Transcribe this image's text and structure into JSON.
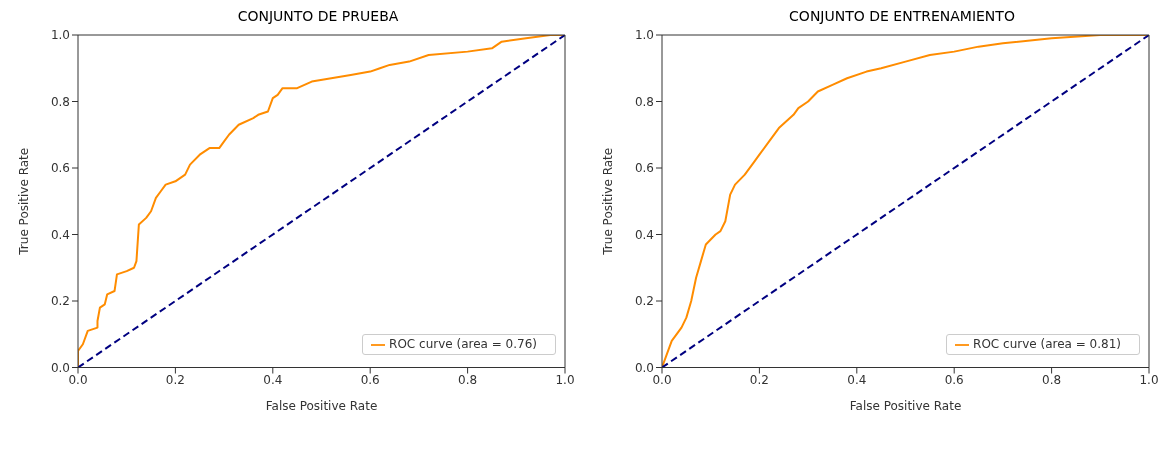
{
  "chart_data": [
    {
      "type": "line",
      "title": "CONJUNTO DE PRUEBA",
      "xlabel": "False Positive Rate",
      "ylabel": "True Positive Rate",
      "xlim": [
        0,
        1
      ],
      "ylim": [
        0,
        1
      ],
      "xticks": [
        {
          "value": 0,
          "label": "0.0"
        },
        {
          "value": 0.2,
          "label": "0.2"
        },
        {
          "value": 0.4,
          "label": "0.4"
        },
        {
          "value": 0.6,
          "label": "0.6"
        },
        {
          "value": 0.8,
          "label": "0.8"
        },
        {
          "value": 1,
          "label": "1.0"
        }
      ],
      "yticks": [
        {
          "value": 0,
          "label": "0.0"
        },
        {
          "value": 0.2,
          "label": "0.2"
        },
        {
          "value": 0.4,
          "label": "0.4"
        },
        {
          "value": 0.6,
          "label": "0.6"
        },
        {
          "value": 0.8,
          "label": "0.8"
        },
        {
          "value": 1,
          "label": "1.0"
        }
      ],
      "grid": false,
      "legend": "bottom right",
      "marker": "none",
      "series": [
        {
          "name": "ROC curve (area = 0.76)",
          "color": "#ff8c00",
          "line_style": "solid",
          "x": [
            0,
            0,
            0.01,
            0.02,
            0.04,
            0.04,
            0.045,
            0.055,
            0.06,
            0.075,
            0.08,
            0.1,
            0.115,
            0.12,
            0.125,
            0.14,
            0.15,
            0.16,
            0.17,
            0.18,
            0.2,
            0.22,
            0.23,
            0.25,
            0.27,
            0.29,
            0.3,
            0.31,
            0.33,
            0.36,
            0.37,
            0.39,
            0.4,
            0.41,
            0.42,
            0.45,
            0.48,
            0.52,
            0.56,
            0.6,
            0.62,
            0.64,
            0.68,
            0.72,
            0.8,
            0.85,
            0.87,
            0.92,
            0.97,
            1
          ],
          "values": [
            0,
            0.05,
            0.07,
            0.11,
            0.12,
            0.14,
            0.18,
            0.19,
            0.22,
            0.23,
            0.28,
            0.29,
            0.3,
            0.32,
            0.43,
            0.45,
            0.47,
            0.51,
            0.53,
            0.55,
            0.56,
            0.58,
            0.61,
            0.64,
            0.66,
            0.66,
            0.68,
            0.7,
            0.73,
            0.75,
            0.76,
            0.77,
            0.81,
            0.82,
            0.84,
            0.84,
            0.86,
            0.87,
            0.88,
            0.89,
            0.9,
            0.91,
            0.92,
            0.94,
            0.95,
            0.96,
            0.98,
            0.99,
            1,
            1
          ]
        },
        {
          "color": "#000080",
          "line_style": "dashed",
          "x": [
            0,
            1
          ],
          "values": [
            0,
            1
          ]
        }
      ]
    },
    {
      "type": "line",
      "title": "CONJUNTO DE ENTRENAMIENTO",
      "xlabel": "False Positive Rate",
      "ylabel": "True Positive Rate",
      "xlim": [
        0,
        1
      ],
      "ylim": [
        0,
        1
      ],
      "xticks": [
        {
          "value": 0,
          "label": "0.0"
        },
        {
          "value": 0.2,
          "label": "0.2"
        },
        {
          "value": 0.4,
          "label": "0.4"
        },
        {
          "value": 0.6,
          "label": "0.6"
        },
        {
          "value": 0.8,
          "label": "0.8"
        },
        {
          "value": 1,
          "label": "1.0"
        }
      ],
      "yticks": [
        {
          "value": 0,
          "label": "0.0"
        },
        {
          "value": 0.2,
          "label": "0.2"
        },
        {
          "value": 0.4,
          "label": "0.4"
        },
        {
          "value": 0.6,
          "label": "0.6"
        },
        {
          "value": 0.8,
          "label": "0.8"
        },
        {
          "value": 1,
          "label": "1.0"
        }
      ],
      "grid": false,
      "legend": "bottom right",
      "marker": "none",
      "series": [
        {
          "name": "ROC curve (area = 0.81)",
          "color": "#ff8c00",
          "line_style": "solid",
          "x": [
            0,
            0.01,
            0.02,
            0.04,
            0.05,
            0.06,
            0.07,
            0.08,
            0.09,
            0.11,
            0.12,
            0.13,
            0.14,
            0.15,
            0.17,
            0.19,
            0.2,
            0.22,
            0.24,
            0.27,
            0.28,
            0.3,
            0.32,
            0.35,
            0.38,
            0.42,
            0.45,
            0.5,
            0.55,
            0.6,
            0.65,
            0.7,
            0.8,
            0.9,
            1
          ],
          "values": [
            0,
            0.04,
            0.08,
            0.12,
            0.15,
            0.2,
            0.27,
            0.32,
            0.37,
            0.4,
            0.41,
            0.44,
            0.52,
            0.55,
            0.58,
            0.62,
            0.64,
            0.68,
            0.72,
            0.76,
            0.78,
            0.8,
            0.83,
            0.85,
            0.87,
            0.89,
            0.9,
            0.92,
            0.94,
            0.95,
            0.965,
            0.975,
            0.99,
            1,
            1
          ]
        },
        {
          "color": "#000080",
          "line_style": "dashed",
          "x": [
            0,
            1
          ],
          "values": [
            0,
            1
          ]
        }
      ]
    }
  ]
}
